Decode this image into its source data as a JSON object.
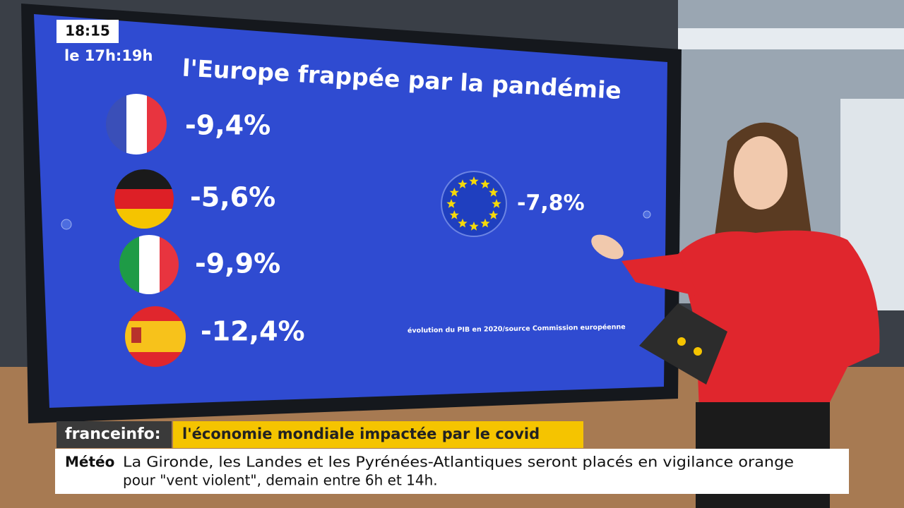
{
  "clock": "18:15",
  "program": "le 17h:19h",
  "screen": {
    "title": "l'Europe frappée par la pandémie",
    "countries": [
      {
        "value": "-9,4%"
      },
      {
        "value": "-5,6%"
      },
      {
        "value": "-9,9%"
      },
      {
        "value": "-12,4%"
      }
    ],
    "eu_value": "-7,8%",
    "source": "évolution du PIB en 2020/source Commission européenne"
  },
  "banner": {
    "brand": "franceinfo:",
    "headline": "l'économie mondiale impactée par le covid"
  },
  "ticker": {
    "label": "Météo",
    "lines": [
      "La Gironde, les Landes et les Pyrénées-Atlantiques seront placés en vigilance orange",
      "pour \"vent violent\", demain entre 6h et 14h."
    ]
  }
}
